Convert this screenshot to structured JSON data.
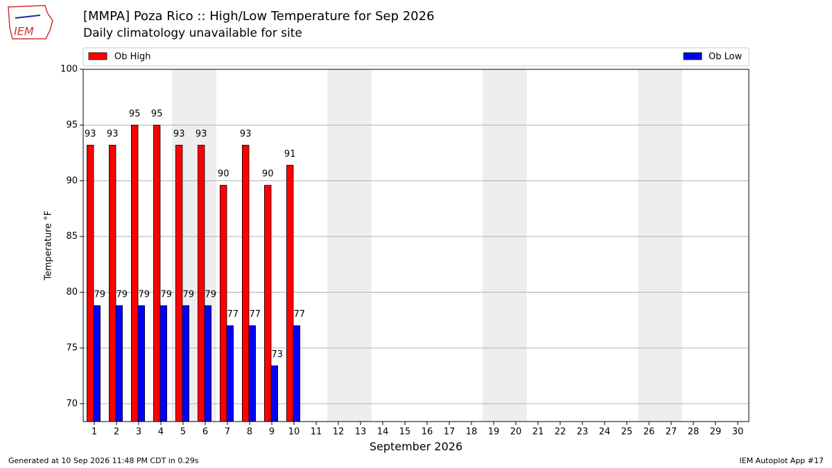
{
  "chart_data": {
    "type": "bar",
    "title": "[MMPA] Poza Rico :: High/Low Temperature for Sep 2026",
    "subtitle": "Daily climatology unavailable for site",
    "xlabel": "September 2026",
    "ylabel": "Temperature °F",
    "x": [
      1,
      2,
      3,
      4,
      5,
      6,
      7,
      8,
      9,
      10
    ],
    "series": [
      {
        "name": "Ob High",
        "color": "#ff0000",
        "values": [
          93.2,
          93.2,
          95,
          95,
          93.2,
          93.2,
          89.6,
          93.2,
          89.6,
          91.4
        ],
        "value_labels": [
          "93",
          "93",
          "95",
          "95",
          "93",
          "93",
          "90",
          "93",
          "90",
          "91"
        ]
      },
      {
        "name": "Ob Low",
        "color": "#0000ff",
        "values": [
          78.8,
          78.8,
          78.8,
          78.8,
          78.8,
          78.8,
          77,
          77,
          73.4,
          77
        ],
        "value_labels": [
          "79",
          "79",
          "79",
          "79",
          "79",
          "79",
          "77",
          "77",
          "73",
          "77"
        ]
      }
    ],
    "weekend_spans": [
      [
        4.5,
        6.5
      ],
      [
        11.5,
        13.5
      ],
      [
        18.5,
        20.5
      ],
      [
        25.5,
        27.5
      ]
    ],
    "xlim": [
      0.5,
      30.5
    ],
    "xticks": [
      1,
      2,
      3,
      4,
      5,
      6,
      7,
      8,
      9,
      10,
      11,
      12,
      13,
      14,
      15,
      16,
      17,
      18,
      19,
      20,
      21,
      22,
      23,
      24,
      25,
      26,
      27,
      28,
      29,
      30
    ],
    "ylim": [
      68.4,
      100
    ],
    "yticks": [
      70,
      75,
      80,
      85,
      90,
      95,
      100
    ],
    "grid": true,
    "footer_left": "Generated at 10 Sep 2026 11:48 PM CDT in 0.29s",
    "footer_right": "IEM Autoplot App #17",
    "logo_text": "IEM"
  }
}
